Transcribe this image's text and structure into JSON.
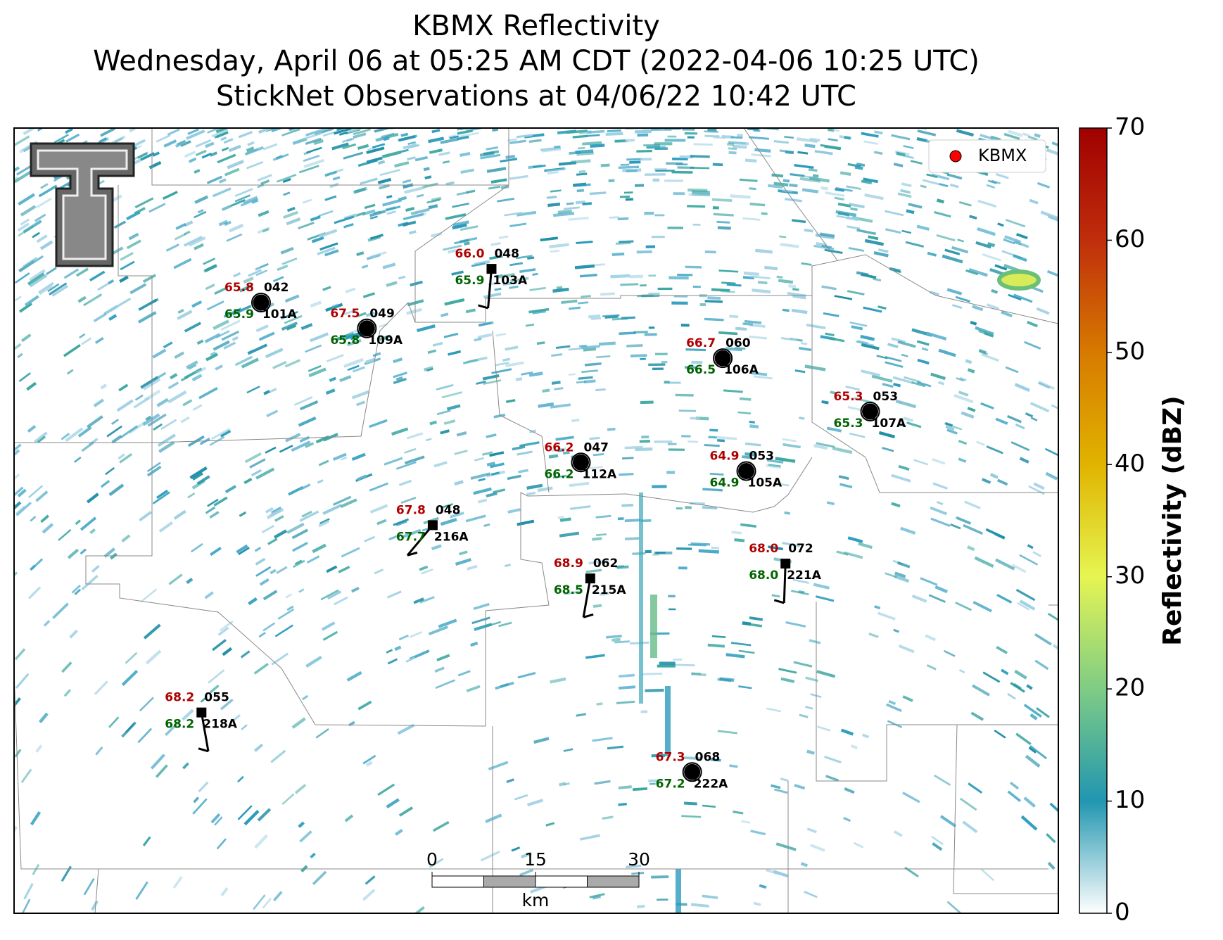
{
  "title": [
    "KBMX Reflectivity",
    "Wednesday, April 06 at 05:25 AM CDT (2022-04-06 10:25 UTC)",
    "StickNet Observations at 04/06/22 10:42 UTC"
  ],
  "legend": "KBMX",
  "colorbar": {
    "label": "Reflectivity (dBZ)",
    "lim": [
      0,
      70
    ],
    "ticks": [
      0,
      10,
      20,
      30,
      40,
      50,
      60,
      70
    ]
  },
  "scalebar": {
    "ticks": [
      0,
      15,
      30
    ],
    "unit": "km"
  },
  "stations": [
    {
      "id": "101A",
      "temperature": "65.8",
      "dewpoint": "65.9",
      "code": "042"
    },
    {
      "id": "109A",
      "temperature": "67.5",
      "dewpoint": "65.8",
      "code": "049"
    },
    {
      "id": "103A",
      "temperature": "66.0",
      "dewpoint": "65.9",
      "code": "048"
    },
    {
      "id": "106A",
      "temperature": "66.7",
      "dewpoint": "66.5",
      "code": "060"
    },
    {
      "id": "107A",
      "temperature": "65.3",
      "dewpoint": "65.3",
      "code": "053"
    },
    {
      "id": "112A",
      "temperature": "66.2",
      "dewpoint": "66.2",
      "code": "047"
    },
    {
      "id": "105A",
      "temperature": "64.9",
      "dewpoint": "64.9",
      "code": "053"
    },
    {
      "id": "216A",
      "temperature": "67.8",
      "dewpoint": "67.7",
      "code": "048"
    },
    {
      "id": "215A",
      "temperature": "68.9",
      "dewpoint": "68.5",
      "code": "062"
    },
    {
      "id": "221A",
      "temperature": "68.0",
      "dewpoint": "68.0",
      "code": "072"
    },
    {
      "id": "218A",
      "temperature": "68.2",
      "dewpoint": "68.2",
      "code": "055"
    },
    {
      "id": "222A",
      "temperature": "67.3",
      "dewpoint": "67.2",
      "code": "068"
    }
  ]
}
